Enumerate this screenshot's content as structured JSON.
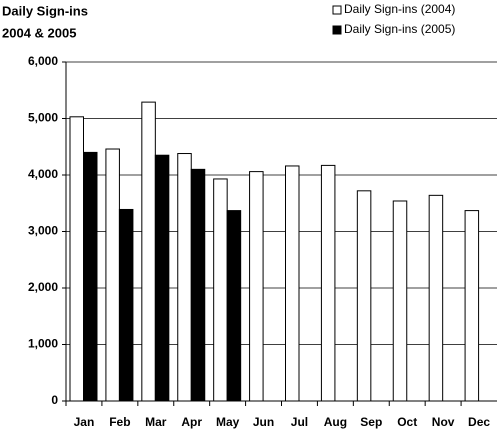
{
  "chart_data": {
    "type": "bar",
    "title": "Daily Sign-ins",
    "subtitle": "2004 & 2005",
    "categories": [
      "Jan",
      "Feb",
      "Mar",
      "Apr",
      "May",
      "Jun",
      "Jul",
      "Aug",
      "Sep",
      "Oct",
      "Nov",
      "Dec"
    ],
    "series": [
      {
        "name": "Daily Sign-ins (2004)",
        "color": "#ffffff",
        "values": [
          5030,
          4460,
          5290,
          4380,
          3930,
          4060,
          4160,
          4170,
          3720,
          3540,
          3640,
          3370
        ]
      },
      {
        "name": "Daily Sign-ins (2005)",
        "color": "#000000",
        "values": [
          4400,
          3390,
          4350,
          4100,
          3370,
          null,
          null,
          null,
          null,
          null,
          null,
          null
        ]
      }
    ],
    "ylim": [
      0,
      6000
    ],
    "yticks": [
      0,
      {
        "value": 1000,
        "label": "1,000"
      },
      {
        "value": 2000,
        "label": "2,000"
      },
      {
        "value": 3000,
        "label": "3,000"
      },
      {
        "value": 4000,
        "label": "4,000"
      },
      {
        "value": 5000,
        "label": "5,000"
      },
      {
        "value": 6000,
        "label": "6,000"
      }
    ],
    "grid": true,
    "legend": "top-right"
  }
}
